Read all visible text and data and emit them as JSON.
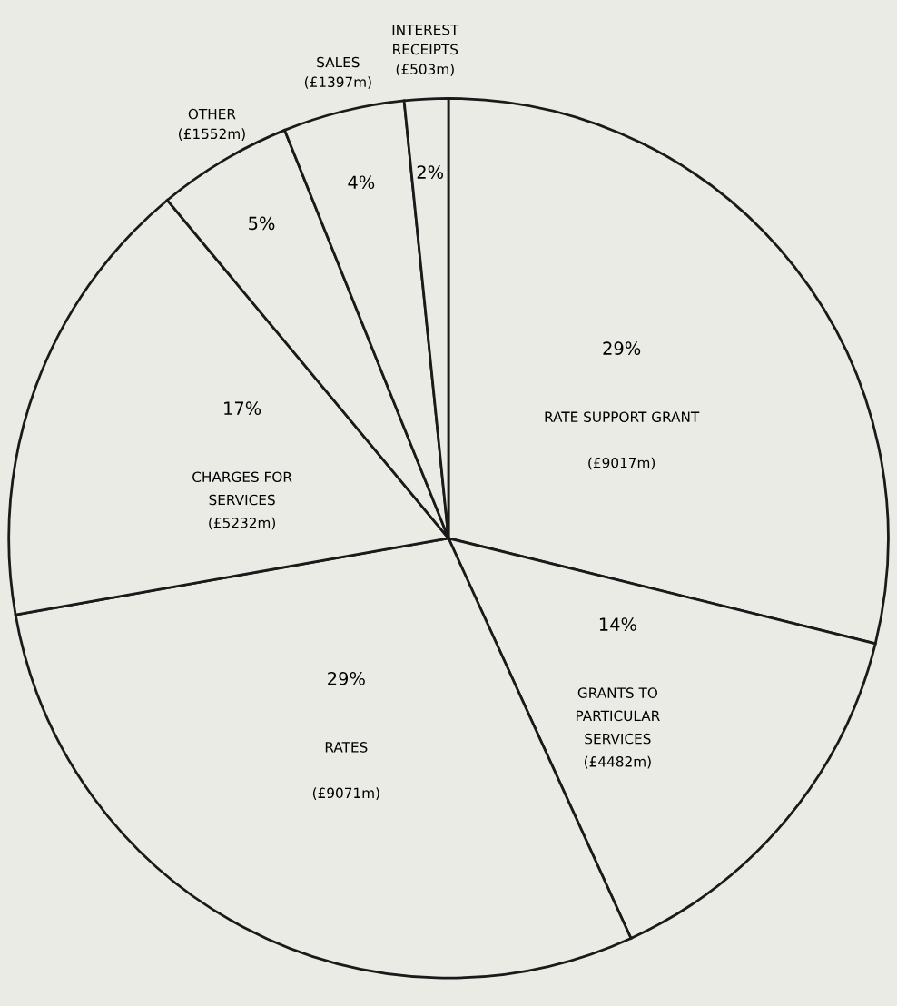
{
  "chart_data": {
    "type": "pie",
    "categories": [
      "RATE SUPPORT GRANT",
      "GRANTS TO\nPARTICULAR\nSERVICES",
      "RATES",
      "CHARGES FOR\nSERVICES",
      "OTHER",
      "SALES",
      "INTEREST\nRECEIPTS"
    ],
    "values": [
      9017,
      4482,
      9071,
      5232,
      1552,
      1397,
      503
    ],
    "value_labels": [
      "(£9017m)",
      "(£4482m)",
      "(£9071m)",
      "(£5232m)",
      "(£1552m)",
      "(£1397m)",
      "(£503m)"
    ],
    "annotations": [
      "29%",
      "14%",
      "29%",
      "17%",
      "5%",
      "4%",
      "2%"
    ],
    "colors": [
      "#ebebe6",
      "#ebebe6",
      "#ebebe6",
      "#ebebe6",
      "#ebebe6",
      "#ebebe6",
      "#ebebe6"
    ]
  }
}
